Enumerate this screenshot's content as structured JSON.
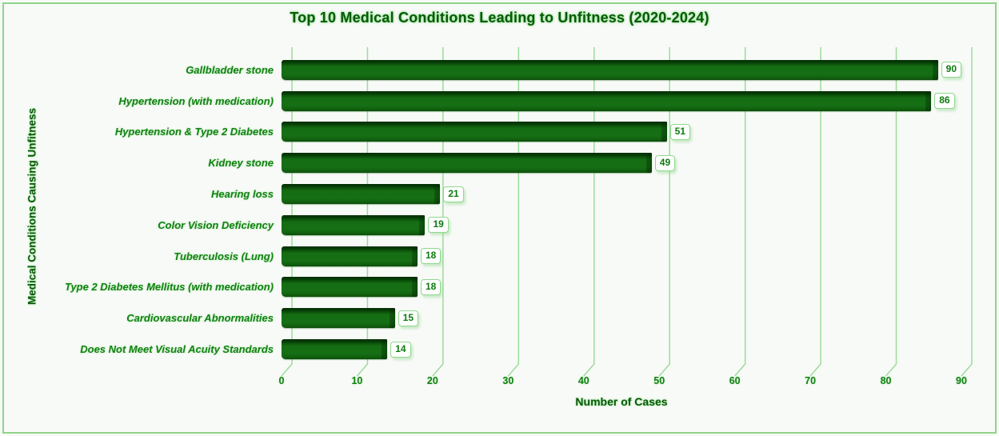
{
  "chart_data": {
    "type": "bar",
    "orientation": "horizontal",
    "style": "3d-bevel",
    "title": "Top 10 Medical Conditions Leading to Unfitness (2020-2024)",
    "xlabel": "Number of Cases",
    "ylabel": "Medical Conditions Causing Unfitness",
    "categories": [
      "Gallbladder stone",
      "Hypertension (with medication)",
      "Hypertension & Type 2 Diabetes",
      "Kidney stone",
      "Hearing loss",
      "Color Vision Deficiency",
      "Tuberculosis (Lung)",
      "Type 2 Diabetes Mellitus (with medication)",
      "Cardiovascular Abnormalities",
      "Does Not Meet Visual Acuity Standards"
    ],
    "values": [
      90,
      86,
      51,
      49,
      21,
      19,
      18,
      18,
      15,
      14
    ],
    "data_labels": [
      "90",
      "86",
      "51",
      "49",
      "21",
      "19",
      "18",
      "18",
      "15",
      "14"
    ],
    "x_ticks": [
      0,
      10,
      20,
      30,
      40,
      50,
      60,
      70,
      80,
      90
    ],
    "xlim": [
      0,
      90
    ],
    "grid": "vertical",
    "legend": "none",
    "colors": {
      "bar": "#156e13",
      "bar_dark_edge": "#042f04",
      "grid": "#9bdc9b",
      "text_green": "#128212",
      "dark_green": "#0a5a0a",
      "frame_border": "#8fd487",
      "background": "#f8faf7",
      "value_box_border": "#8fd88f",
      "value_text": "#0c7a0c"
    }
  }
}
